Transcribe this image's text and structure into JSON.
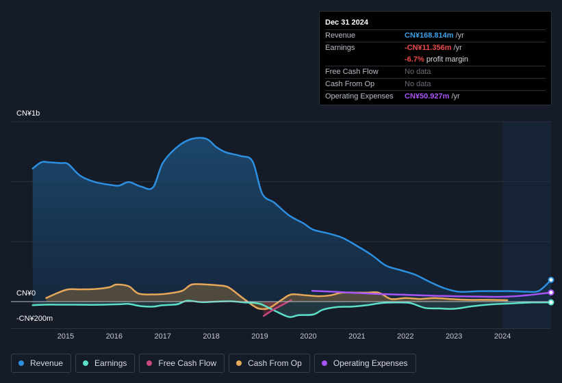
{
  "colors": {
    "revenue": "#2d8fe0",
    "earnings": "#5ce0c8",
    "free_cash_flow": "#c94a7c",
    "cash_from_op": "#e8a85a",
    "operating_expenses": "#a855f7"
  },
  "tooltip": {
    "date": "Dec 31 2024",
    "rows": [
      {
        "label": "Revenue",
        "value": "CN¥168.814m",
        "unit": "/yr"
      },
      {
        "label": "Earnings",
        "value": "-CN¥11.356m",
        "unit": "/yr"
      },
      {
        "margin_value": "-6.7%",
        "margin_text": "profit margin"
      },
      {
        "label": "Free Cash Flow",
        "value": "No data"
      },
      {
        "label": "Cash From Op",
        "value": "No data"
      },
      {
        "label": "Operating Expenses",
        "value": "CN¥50.927m",
        "unit": "/yr"
      }
    ]
  },
  "legend": [
    {
      "label": "Revenue",
      "color": "#2d8fe0"
    },
    {
      "label": "Earnings",
      "color": "#5ce0c8"
    },
    {
      "label": "Free Cash Flow",
      "color": "#c94a7c"
    },
    {
      "label": "Cash From Op",
      "color": "#e8a85a"
    },
    {
      "label": "Operating Expenses",
      "color": "#a855f7"
    }
  ],
  "chart_data": {
    "type": "line",
    "title": "",
    "xlabel": "",
    "ylabel": "",
    "y_axis_labels": [
      "CN¥1b",
      "CN¥0",
      "-CN¥200m"
    ],
    "x_ticks": [
      "2015",
      "2016",
      "2017",
      "2018",
      "2019",
      "2020",
      "2021",
      "2022",
      "2023",
      "2024"
    ],
    "ylim": [
      -200,
      1000
    ],
    "xlim": [
      2014.0,
      2025.0
    ],
    "forecast_region_start": 2024.0,
    "series": [
      {
        "name": "Revenue",
        "color": "#2d8fe0",
        "filled": true,
        "x": [
          2014.32,
          2014.5,
          2014.65,
          2014.9,
          2015.05,
          2015.3,
          2015.6,
          2015.9,
          2016.1,
          2016.3,
          2016.55,
          2016.8,
          2017.0,
          2017.3,
          2017.6,
          2017.9,
          2018.1,
          2018.3,
          2018.6,
          2018.85,
          2019.05,
          2019.3,
          2019.6,
          2019.9,
          2020.1,
          2020.4,
          2020.7,
          2021.0,
          2021.3,
          2021.6,
          2021.9,
          2022.2,
          2022.5,
          2022.8,
          2023.1,
          2023.5,
          2023.9,
          2024.2,
          2024.5,
          2024.75,
          2025.0
        ],
        "values": [
          740,
          775,
          775,
          770,
          765,
          700,
          665,
          650,
          645,
          665,
          640,
          635,
          770,
          860,
          905,
          905,
          860,
          830,
          810,
          780,
          600,
          550,
          480,
          435,
          400,
          380,
          355,
          310,
          260,
          200,
          175,
          150,
          110,
          75,
          55,
          58,
          58,
          58,
          55,
          60,
          121
        ]
      },
      {
        "name": "Earnings",
        "color": "#5ce0c8",
        "filled": true,
        "x": [
          2014.32,
          2014.6,
          2014.9,
          2015.2,
          2015.5,
          2015.8,
          2016.1,
          2016.3,
          2016.55,
          2016.8,
          2017.0,
          2017.3,
          2017.5,
          2017.8,
          2018.1,
          2018.4,
          2018.7,
          2019.0,
          2019.3,
          2019.6,
          2019.8,
          2020.1,
          2020.3,
          2020.6,
          2020.9,
          2021.2,
          2021.5,
          2021.8,
          2022.1,
          2022.4,
          2022.7,
          2023.0,
          2023.4,
          2023.8,
          2024.2,
          2024.6,
          2025.0
        ],
        "values": [
          -20,
          -17,
          -17,
          -17,
          -18,
          -17,
          -15,
          -13,
          -25,
          -28,
          -20,
          -15,
          5,
          -3,
          0,
          2,
          -5,
          -12,
          -50,
          -85,
          -75,
          -72,
          -45,
          -30,
          -28,
          -20,
          -8,
          -5,
          -8,
          -35,
          -38,
          -40,
          -25,
          -15,
          -10,
          -5,
          -4
        ]
      },
      {
        "name": "Free Cash Flow",
        "color": "#c94a7c",
        "filled": true,
        "x": [
          2019.08,
          2019.25,
          2019.45,
          2019.65
        ],
        "values": [
          -80,
          -50,
          -20,
          8
        ]
      },
      {
        "name": "Cash From Op",
        "color": "#e8a85a",
        "filled": true,
        "x": [
          2014.6,
          2014.85,
          2015.05,
          2015.3,
          2015.6,
          2015.9,
          2016.05,
          2016.3,
          2016.5,
          2016.8,
          2017.1,
          2017.4,
          2017.6,
          2017.9,
          2018.15,
          2018.35,
          2018.6,
          2018.85,
          2019.0,
          2019.2,
          2019.45,
          2019.65,
          2019.95,
          2020.2,
          2020.45,
          2020.7,
          2021.0,
          2021.2,
          2021.45,
          2021.7,
          2022.0,
          2022.3,
          2022.6,
          2022.9,
          2023.3,
          2023.7,
          2024.1
        ],
        "values": [
          20,
          50,
          68,
          68,
          70,
          80,
          95,
          85,
          45,
          40,
          45,
          60,
          95,
          95,
          90,
          80,
          30,
          -20,
          -40,
          -35,
          10,
          40,
          35,
          30,
          35,
          50,
          50,
          50,
          50,
          15,
          20,
          15,
          20,
          15,
          10,
          10,
          8
        ]
      },
      {
        "name": "Operating Expenses",
        "color": "#a855f7",
        "filled": false,
        "x": [
          2020.08,
          2020.5,
          2021.0,
          2021.5,
          2022.0,
          2022.5,
          2023.0,
          2023.5,
          2024.0,
          2024.5,
          2025.0
        ],
        "values": [
          60,
          55,
          48,
          42,
          38,
          33,
          30,
          28,
          27,
          35,
          51
        ]
      }
    ]
  }
}
